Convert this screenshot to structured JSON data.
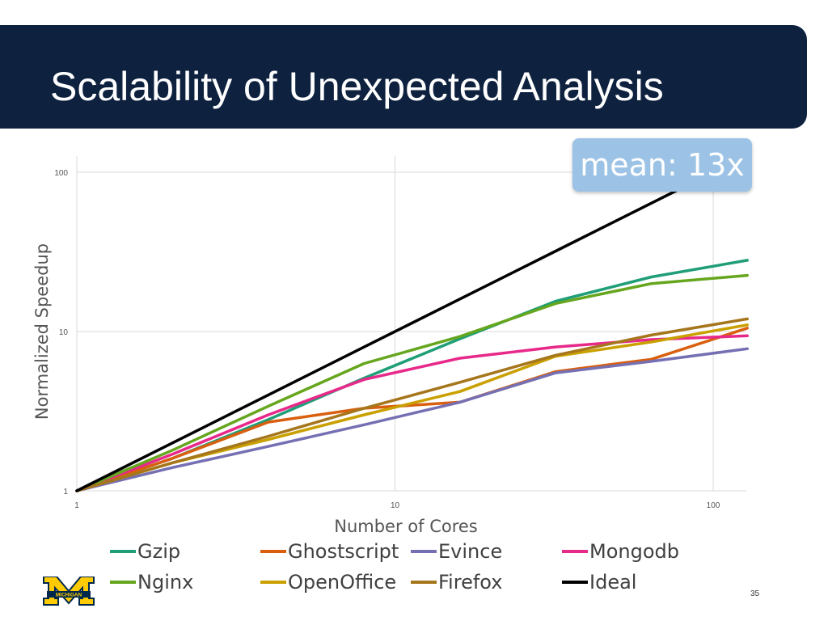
{
  "slide": {
    "title": "Scalability of Unexpected Analysis",
    "callout": "mean: 13x",
    "page_number": "35",
    "logo_text": "MICHIGAN"
  },
  "colors": {
    "title_bar": "#0e2240",
    "callout_bg": "#9cc3e6",
    "logo_blue": "#00274c",
    "logo_maize": "#ffcb05"
  },
  "chart_data": {
    "type": "line",
    "xlabel": "Number of Cores",
    "ylabel": "Normalized Speedup",
    "xscale": "log",
    "yscale": "log",
    "xlim": [
      1,
      128
    ],
    "ylim": [
      1,
      100
    ],
    "xticks": [
      {
        "value": 1,
        "label": "1"
      },
      {
        "value": 10,
        "label": "10"
      },
      {
        "value": 100,
        "label": "100"
      }
    ],
    "yticks": [
      {
        "value": 1,
        "label": "1"
      },
      {
        "value": 10,
        "label": "10"
      },
      {
        "value": 100,
        "label": "100"
      }
    ],
    "grid": true,
    "legend_position": "bottom",
    "x": [
      1,
      2,
      4,
      8,
      16,
      32,
      64,
      128
    ],
    "series": [
      {
        "name": "Gzip",
        "color": "#1f9e77",
        "values": [
          1,
          1.6,
          2.8,
          5.1,
          9.0,
          15.5,
          22,
          28
        ]
      },
      {
        "name": "Ghostscript",
        "color": "#d95f0e",
        "values": [
          1,
          1.6,
          2.7,
          3.3,
          3.6,
          5.6,
          6.7,
          10.5
        ]
      },
      {
        "name": "Evince",
        "color": "#7570b3",
        "values": [
          1,
          1.4,
          1.9,
          2.6,
          3.6,
          5.5,
          6.5,
          7.8
        ]
      },
      {
        "name": "Mongodb",
        "color": "#e7298a",
        "values": [
          1,
          1.7,
          3.0,
          5.0,
          6.8,
          8.0,
          8.9,
          9.4
        ]
      },
      {
        "name": "Nginx",
        "color": "#66a61e",
        "values": [
          1,
          1.8,
          3.4,
          6.3,
          9.3,
          15,
          20,
          22.5
        ]
      },
      {
        "name": "OpenOffice",
        "color": "#c9a000",
        "values": [
          1,
          1.5,
          2.1,
          3.0,
          4.2,
          7.0,
          8.6,
          11
        ]
      },
      {
        "name": "Firefox",
        "color": "#a6761d",
        "values": [
          1,
          1.5,
          2.2,
          3.3,
          4.8,
          7.1,
          9.5,
          12
        ]
      },
      {
        "name": "Ideal",
        "color": "#000000",
        "values": [
          1,
          2,
          4,
          8,
          16,
          32,
          64,
          128
        ]
      }
    ]
  }
}
